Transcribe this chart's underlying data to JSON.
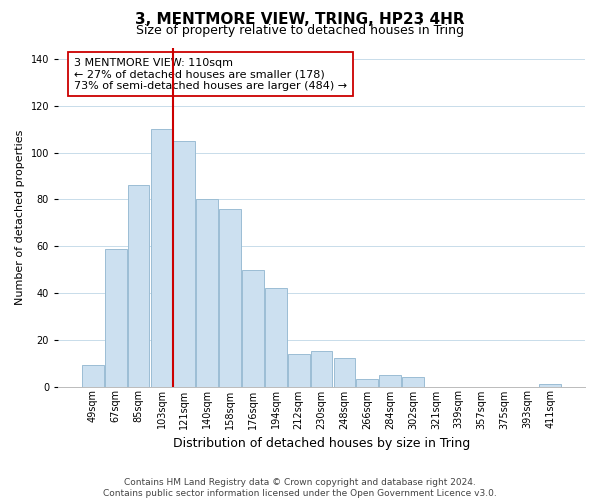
{
  "title": "3, MENTMORE VIEW, TRING, HP23 4HR",
  "subtitle": "Size of property relative to detached houses in Tring",
  "xlabel": "Distribution of detached houses by size in Tring",
  "ylabel": "Number of detached properties",
  "bar_labels": [
    "49sqm",
    "67sqm",
    "85sqm",
    "103sqm",
    "121sqm",
    "140sqm",
    "158sqm",
    "176sqm",
    "194sqm",
    "212sqm",
    "230sqm",
    "248sqm",
    "266sqm",
    "284sqm",
    "302sqm",
    "321sqm",
    "339sqm",
    "357sqm",
    "375sqm",
    "393sqm",
    "411sqm"
  ],
  "bar_values": [
    9,
    59,
    86,
    110,
    105,
    80,
    76,
    50,
    42,
    14,
    15,
    12,
    3,
    5,
    4,
    0,
    0,
    0,
    0,
    0,
    1
  ],
  "bar_color": "#cce0f0",
  "bar_edge_color": "#9bbdd4",
  "vline_x": 3.5,
  "vline_color": "#cc0000",
  "annotation_line1": "3 MENTMORE VIEW: 110sqm",
  "annotation_line2": "← 27% of detached houses are smaller (178)",
  "annotation_line3": "73% of semi-detached houses are larger (484) →",
  "box_edge_color": "#cc0000",
  "ylim": [
    0,
    145
  ],
  "yticks": [
    0,
    20,
    40,
    60,
    80,
    100,
    120,
    140
  ],
  "footer_text": "Contains HM Land Registry data © Crown copyright and database right 2024.\nContains public sector information licensed under the Open Government Licence v3.0.",
  "title_fontsize": 11,
  "subtitle_fontsize": 9,
  "xlabel_fontsize": 9,
  "ylabel_fontsize": 8,
  "annotation_fontsize": 8,
  "footer_fontsize": 6.5,
  "tick_fontsize": 7
}
